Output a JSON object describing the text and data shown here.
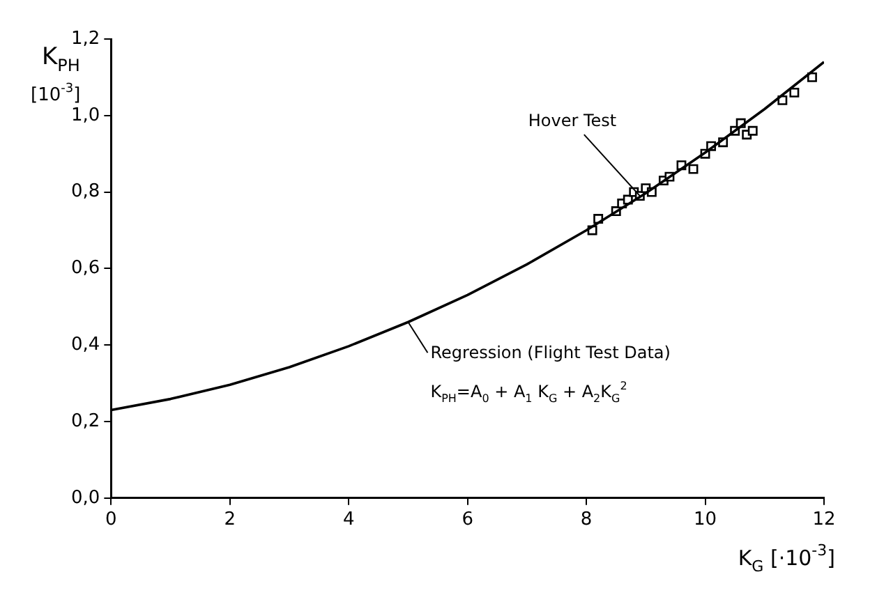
{
  "chart_data": {
    "type": "line",
    "xlabel": "K$_{G}$ [·10$^{-3}$]",
    "ylabel": "K$_{PH}$ [10$^{-3}$]",
    "xlim": [
      0,
      12
    ],
    "xticks": [
      0,
      2,
      4,
      6,
      8,
      10,
      12
    ],
    "ylim": [
      0,
      1.2
    ],
    "yticks": [
      {
        "value": 0,
        "label": "0,0"
      },
      {
        "value": 0.2,
        "label": "0,2"
      },
      {
        "value": 0.4,
        "label": "0,4"
      },
      {
        "value": 0.6,
        "label": "0,6"
      },
      {
        "value": 0.8,
        "label": "0,8"
      },
      {
        "value": 1.0,
        "label": "1,0"
      },
      {
        "value": 1.2,
        "label": "1,2"
      }
    ],
    "grid": false,
    "legend": false,
    "series": [
      {
        "name": "Regression (Flight Test Data)",
        "color": "#000000",
        "marker": "none",
        "x": [
          0,
          1,
          2,
          3,
          4,
          5,
          6,
          7,
          8,
          9,
          10,
          11,
          12
        ],
        "values": [
          0.23,
          0.259,
          0.296,
          0.342,
          0.397,
          0.46,
          0.531,
          0.611,
          0.7,
          0.797,
          0.903,
          1.017,
          1.14
        ]
      },
      {
        "name": "Hover Test",
        "type": "scatter",
        "color": "#000000",
        "marker": "square",
        "x": [
          8.1,
          8.2,
          8.5,
          8.6,
          8.7,
          8.8,
          8.9,
          9.0,
          9.1,
          9.3,
          9.4,
          9.6,
          9.8,
          10.0,
          10.1,
          10.3,
          10.5,
          10.6,
          10.7,
          10.8,
          11.3,
          11.5,
          11.8
        ],
        "values": [
          0.7,
          0.73,
          0.75,
          0.77,
          0.78,
          0.8,
          0.79,
          0.81,
          0.8,
          0.83,
          0.84,
          0.87,
          0.86,
          0.9,
          0.92,
          0.93,
          0.96,
          0.98,
          0.95,
          0.96,
          1.04,
          1.06,
          1.1
        ]
      }
    ],
    "annotations": [
      "K$_{PH}$=A$_{0}$ + A$_{1}$ K$_{G}$ + A$_{2}$K$_{G}$$^{2}$"
    ]
  }
}
